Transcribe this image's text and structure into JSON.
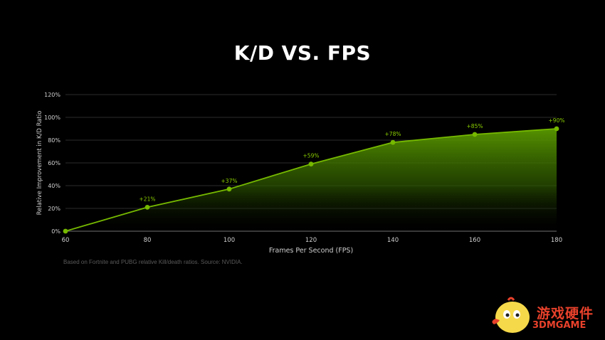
{
  "chart_data": {
    "type": "area",
    "title": "K/D VS. FPS",
    "xlabel": "Frames Per Second (FPS)",
    "ylabel": "Relative Improvement in K/D Ratio",
    "x": [
      60,
      80,
      100,
      120,
      140,
      160,
      180
    ],
    "y": [
      0,
      21,
      37,
      59,
      78,
      85,
      90
    ],
    "data_labels": [
      "",
      "+21%",
      "+37%",
      "+59%",
      "+78%",
      "+85%",
      "+90%"
    ],
    "x_ticks": [
      "60",
      "80",
      "100",
      "120",
      "140",
      "160",
      "180"
    ],
    "y_ticks": [
      "0%",
      "20%",
      "40%",
      "60%",
      "80%",
      "100%",
      "120%"
    ],
    "y_tick_values": [
      0,
      20,
      40,
      60,
      80,
      100,
      120
    ],
    "xlim": [
      60,
      180
    ],
    "ylim": [
      0,
      120
    ],
    "grid": true,
    "colors": {
      "line": "#76b900",
      "fill": "#5a9a00",
      "grid": "#3a3a3a",
      "text": "#d0d0d0",
      "label": "#8cd000"
    }
  },
  "note": "Based on Fortnite and PUBG relative Kill/death ratios. Source: NVIDIA.",
  "watermark": {
    "cn": "游戏硬件",
    "en": "3DMGAME"
  }
}
